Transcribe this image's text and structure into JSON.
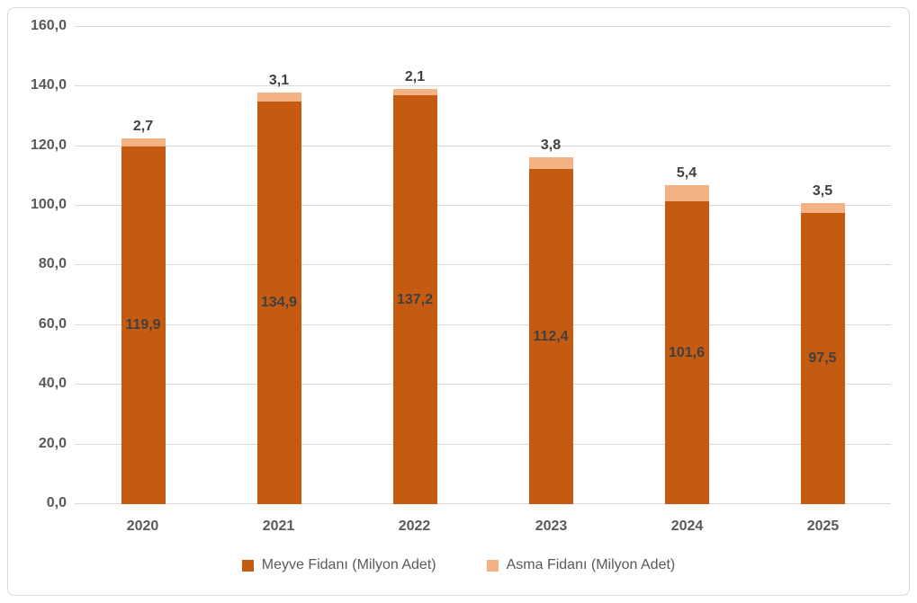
{
  "chart_data": {
    "type": "bar",
    "stacked": true,
    "title": "",
    "xlabel": "",
    "ylabel": "",
    "categories": [
      "2020",
      "2021",
      "2022",
      "2023",
      "2024",
      "2025"
    ],
    "series": [
      {
        "key": "meyve-fidani",
        "name": "Meyve Fidanı (Milyon Adet)",
        "color": "#C55A11",
        "values": [
          119.9,
          134.9,
          137.2,
          112.4,
          101.6,
          97.5
        ],
        "value_labels": [
          "119,9",
          "134,9",
          "137,2",
          "112,4",
          "101,6",
          "97,5"
        ],
        "label_position": "inside-center"
      },
      {
        "key": "asma-fidani",
        "name": "Asma Fidanı (Milyon Adet)",
        "color": "#F4B183",
        "values": [
          2.7,
          3.1,
          2.1,
          3.8,
          5.4,
          3.5
        ],
        "value_labels": [
          "2,7",
          "3,1",
          "2,1",
          "3,8",
          "5,4",
          "3,5"
        ],
        "label_position": "outside-top"
      }
    ],
    "y_axis": {
      "min": 0,
      "max": 160,
      "step": 20,
      "tick_labels": [
        "0,0",
        "20,0",
        "40,0",
        "60,0",
        "80,0",
        "100,0",
        "120,0",
        "140,0",
        "160,0"
      ]
    },
    "grid": true,
    "legend_position": "bottom",
    "colors": {
      "gridline": "#D9D9D9",
      "axis_text": "#595959",
      "data_label_text": "#404040",
      "frame_border": "#D9D9D9",
      "background": "#FFFFFF"
    }
  }
}
